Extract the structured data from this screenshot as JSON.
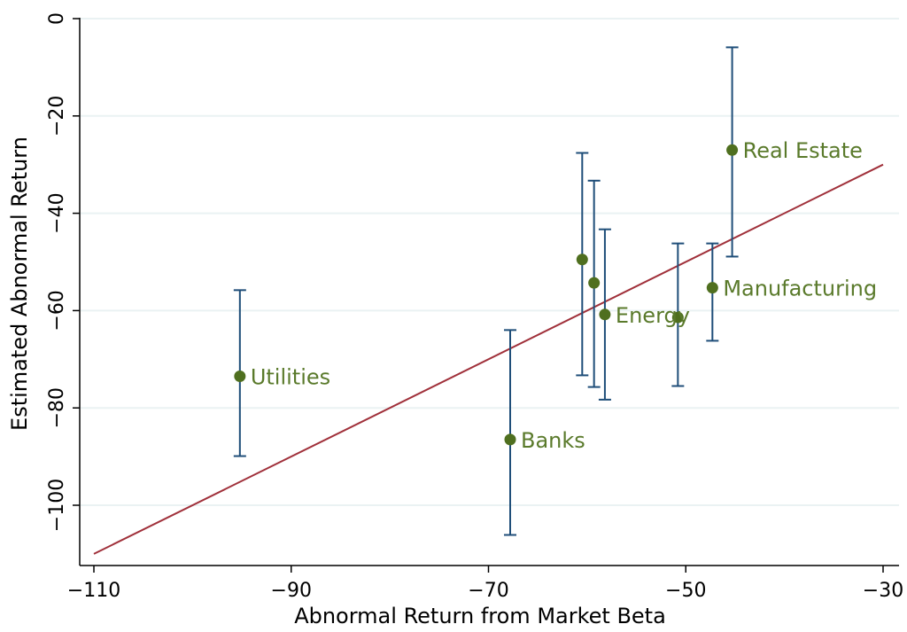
{
  "chart_data": {
    "type": "scatter",
    "title": "",
    "xlabel": "Abnormal Return from Market Beta",
    "ylabel": "Estimated Abnormal Return",
    "xlim": [
      -110,
      -30
    ],
    "ylim": [
      -110,
      0
    ],
    "xticks": [
      -110,
      -90,
      -70,
      -50,
      -30
    ],
    "yticks": [
      0,
      -20,
      -40,
      -60,
      -80,
      -100
    ],
    "xtick_labels": [
      "−110",
      "−90",
      "−70",
      "−50",
      "−30"
    ],
    "ytick_labels": [
      "0",
      "−20",
      "−40",
      "−60",
      "−80",
      "−100"
    ],
    "grid": "horizontal",
    "points": [
      {
        "label": "Utilities",
        "x": -95.2,
        "y": -73.5,
        "ci_low": -89.9,
        "ci_high": -55.8
      },
      {
        "label": "Banks",
        "x": -67.8,
        "y": -86.5,
        "ci_low": -106.1,
        "ci_high": -64.0
      },
      {
        "label": "",
        "x": -60.5,
        "y": -49.5,
        "ci_low": -73.3,
        "ci_high": -27.6
      },
      {
        "label": "",
        "x": -59.3,
        "y": -54.3,
        "ci_low": -75.7,
        "ci_high": -33.3
      },
      {
        "label": "Energy",
        "x": -58.2,
        "y": -60.8,
        "ci_low": -78.3,
        "ci_high": -43.3
      },
      {
        "label": "",
        "x": -50.8,
        "y": -61.4,
        "ci_low": -75.5,
        "ci_high": -46.2
      },
      {
        "label": "Manufacturing",
        "x": -47.3,
        "y": -55.3,
        "ci_low": -66.2,
        "ci_high": -46.2
      },
      {
        "label": "Real Estate",
        "x": -45.3,
        "y": -27.0,
        "ci_low": -48.9,
        "ci_high": -5.9
      }
    ],
    "reference_line": {
      "x": [
        -110,
        -30
      ],
      "y": [
        -110,
        -30
      ]
    },
    "colors": {
      "point": "#4f6f1f",
      "point_label": "#5a7a2b",
      "error_bar": "#1f4e79",
      "reference_line": "#a0303a",
      "grid": "#eaf2f3"
    }
  }
}
